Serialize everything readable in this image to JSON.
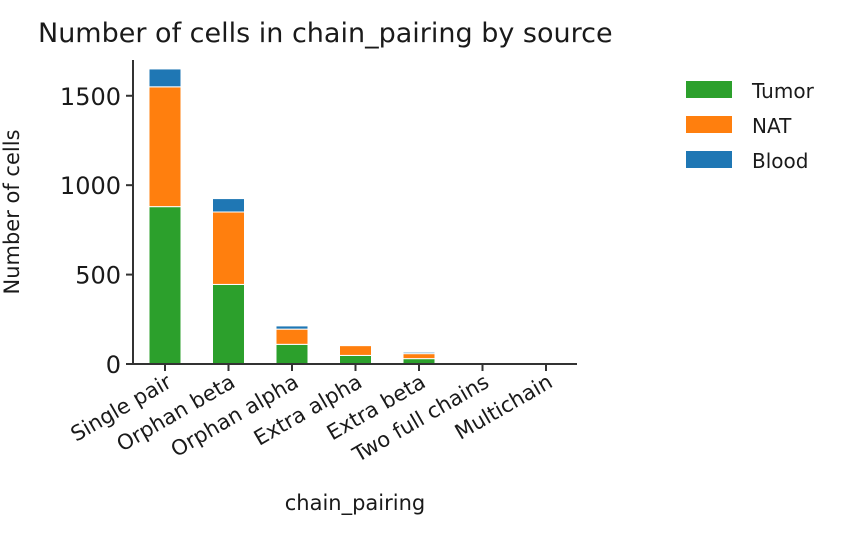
{
  "chart_data": {
    "type": "bar",
    "stacked": true,
    "title": "Number of cells in chain_pairing by source",
    "xlabel": "chain_pairing",
    "ylabel": "Number of cells",
    "ylim": [
      0,
      1700
    ],
    "yticks": [
      0,
      500,
      1000,
      1500
    ],
    "grid": false,
    "legend_position": "right",
    "categories": [
      "Single pair",
      "Orphan beta",
      "Orphan alpha",
      "Extra alpha",
      "Extra beta",
      "Two full chains",
      "Multichain"
    ],
    "series": [
      {
        "name": "Tumor",
        "color": "#2ca02c",
        "values": [
          880,
          445,
          110,
          48,
          30,
          8,
          8
        ]
      },
      {
        "name": "NAT",
        "color": "#ff7f0e",
        "values": [
          670,
          405,
          85,
          55,
          28,
          5,
          5
        ]
      },
      {
        "name": "Blood",
        "color": "#1f77b4",
        "values": [
          100,
          75,
          18,
          4,
          8,
          0,
          0
        ]
      }
    ]
  }
}
